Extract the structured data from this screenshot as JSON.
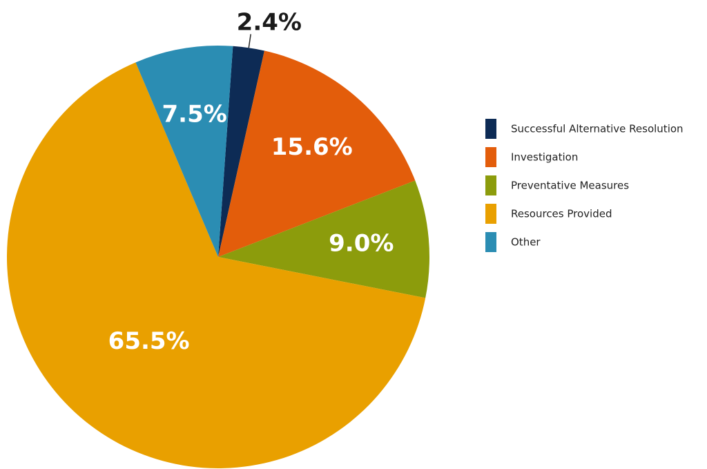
{
  "chart_data": {
    "type": "pie",
    "categories": [
      "Successful Alternative Resolution",
      "Investigation",
      "Preventative Measures",
      "Resources Provided",
      "Other"
    ],
    "values": [
      2.4,
      15.6,
      9.0,
      65.5,
      7.5
    ],
    "value_labels": [
      "2.4%",
      "15.6%",
      "9.0%",
      "65.5%",
      "7.5%"
    ],
    "colors": [
      "#0d2b55",
      "#e35d0b",
      "#8c9c0c",
      "#e9a000",
      "#2b8db3"
    ],
    "legend": "right"
  }
}
